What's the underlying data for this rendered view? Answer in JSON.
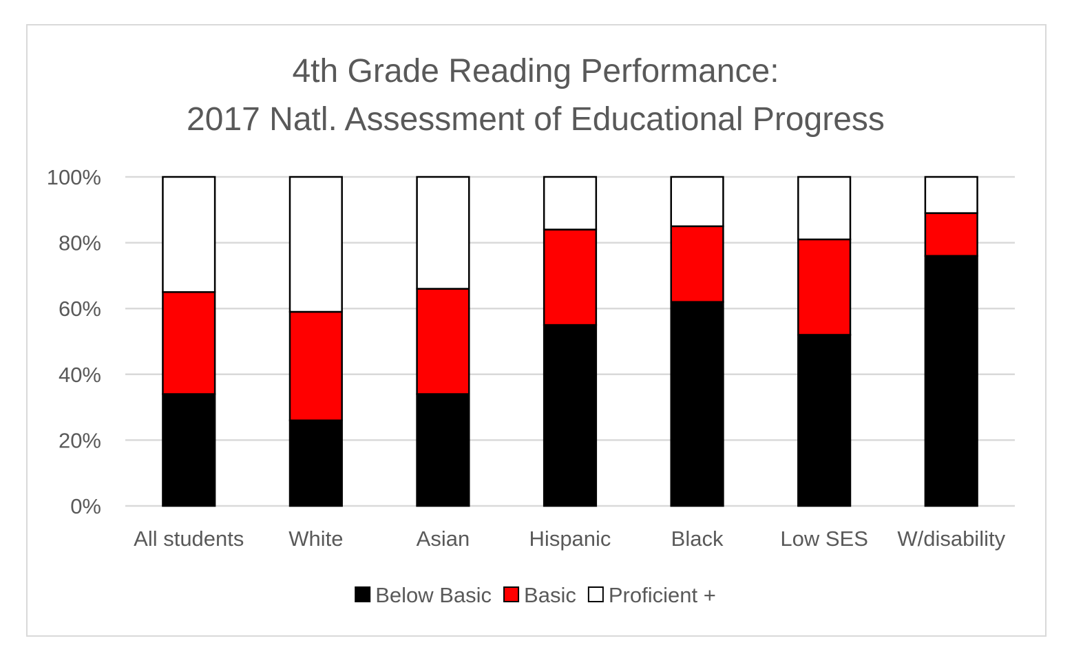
{
  "chart_data": {
    "type": "bar",
    "stacked": true,
    "title": "4th Grade Reading Performance:",
    "subtitle": "2017 Natl. Assessment of Educational Progress",
    "xlabel": "",
    "ylabel": "",
    "ylim": [
      0,
      100
    ],
    "y_ticks": [
      "0%",
      "20%",
      "40%",
      "60%",
      "80%",
      "100%"
    ],
    "grid": true,
    "legend_position": "bottom",
    "categories": [
      "All students",
      "White",
      "Asian",
      "Hispanic",
      "Black",
      "Low SES",
      "W/disability"
    ],
    "series": [
      {
        "name": "Below Basic",
        "color": "#000000",
        "values": [
          34,
          26,
          34,
          55,
          62,
          52,
          76
        ]
      },
      {
        "name": "Basic",
        "color": "#ff0000",
        "values": [
          31,
          33,
          32,
          29,
          23,
          29,
          13
        ]
      },
      {
        "name": "Proficient +",
        "color": "#ffffff",
        "values": [
          35,
          41,
          34,
          16,
          15,
          19,
          11
        ]
      }
    ]
  }
}
